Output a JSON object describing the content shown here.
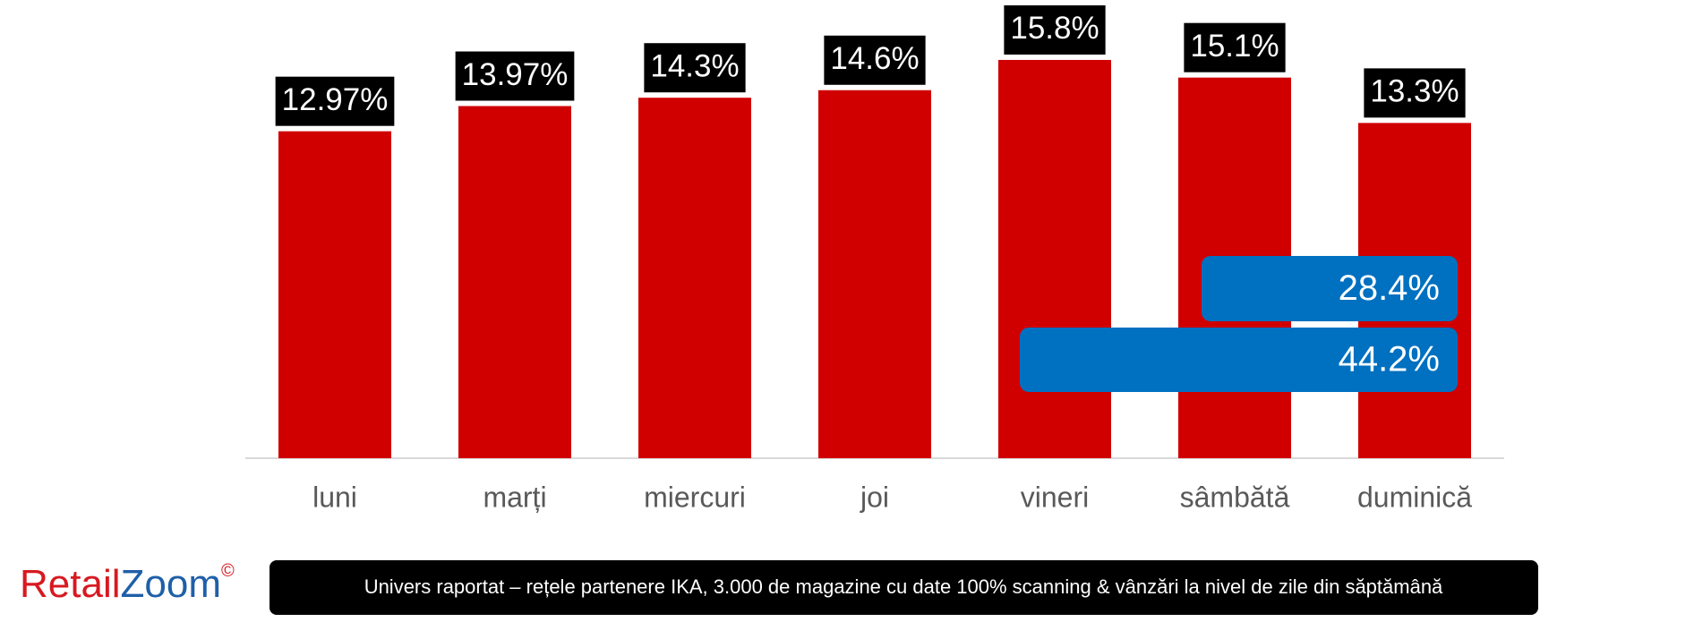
{
  "chart_data": {
    "type": "bar",
    "categories": [
      "luni",
      "marți",
      "miercuri",
      "joi",
      "vineri",
      "sâmbătă",
      "duminică"
    ],
    "values": [
      12.97,
      13.97,
      14.3,
      14.6,
      15.8,
      15.1,
      13.3
    ],
    "value_labels": [
      "12.97%",
      "13.97%",
      "14.3%",
      "14.6%",
      "15.8%",
      "15.1%",
      "13.3%"
    ],
    "color": "#d00000",
    "ylim": [
      0,
      18
    ],
    "annotations": [
      {
        "value": 28.4,
        "label": "28.4%"
      },
      {
        "value": 44.2,
        "label": "44.2%"
      }
    ],
    "annotation_color": "#0070c0"
  },
  "logo": [
    "Retail",
    "Zoom",
    "©"
  ],
  "footer": "Univers raportat – rețele partenere IKA, 3.000 de magazine cu date 100% scanning & vânzări la nivel de zile din săptămână"
}
